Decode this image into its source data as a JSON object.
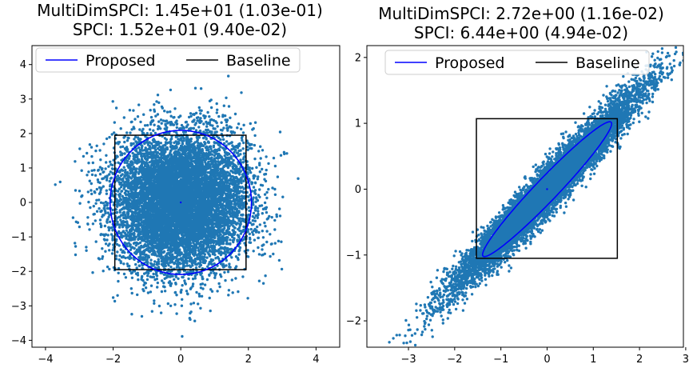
{
  "chart_data": [
    {
      "type": "scatter",
      "title": "MultiDimSPCI: 1.45e+01 (1.03e-01)",
      "subtitle": "SPCI: 1.52e+01 (9.40e-02)",
      "xlim": [
        -4.4,
        4.7
      ],
      "ylim": [
        -4.2,
        4.55
      ],
      "xticks": [
        -4,
        -2,
        0,
        2,
        4
      ],
      "yticks": [
        -4,
        -3,
        -2,
        -1,
        0,
        1,
        2,
        3,
        4
      ],
      "scatter_color": "#1f77b4",
      "points_distribution": {
        "mean": [
          0,
          0
        ],
        "std": [
          1,
          1
        ],
        "correlation": 0,
        "count": 9000
      },
      "ellipse": {
        "center": [
          0,
          0
        ],
        "semi_axis_x": 2.09,
        "semi_axis_y": 2.09,
        "angle_deg": 0,
        "color": "#0000ff"
      },
      "box": {
        "x": [
          -1.95,
          1.93
        ],
        "y": [
          -1.95,
          1.95
        ],
        "color": "#000000"
      },
      "center_point": [
        0,
        0
      ],
      "legend": {
        "placement": "top",
        "entries": [
          {
            "label": "Proposed",
            "color": "#0000ff"
          },
          {
            "label": "Baseline",
            "color": "#000000"
          }
        ]
      }
    },
    {
      "type": "scatter",
      "title": "MultiDimSPCI: 2.72e+00 (1.16e-02)",
      "subtitle": "SPCI: 6.44e+00 (4.94e-02)",
      "xlim": [
        -3.9,
        2.95
      ],
      "ylim": [
        -2.4,
        2.18
      ],
      "xticks": [
        -3,
        -2,
        -1,
        0,
        1,
        2,
        3
      ],
      "yticks": [
        -2,
        -1,
        0,
        1,
        2
      ],
      "scatter_color": "#1f77b4",
      "points_distribution": {
        "mean": [
          0,
          0
        ],
        "std": [
          1,
          0.75
        ],
        "correlation": 0.97,
        "count": 9000
      },
      "ellipse": {
        "center": [
          0,
          0
        ],
        "semi_axis_major": 1.72,
        "semi_axis_minor": 0.2,
        "angle_deg": 36,
        "color": "#0000ff"
      },
      "box": {
        "x": [
          -1.53,
          1.52
        ],
        "y": [
          -1.05,
          1.07
        ],
        "color": "#000000"
      },
      "center_point": [
        0,
        0
      ],
      "legend": {
        "placement": "top",
        "entries": [
          {
            "label": "Proposed",
            "color": "#0000ff"
          },
          {
            "label": "Baseline",
            "color": "#000000"
          }
        ]
      }
    }
  ]
}
